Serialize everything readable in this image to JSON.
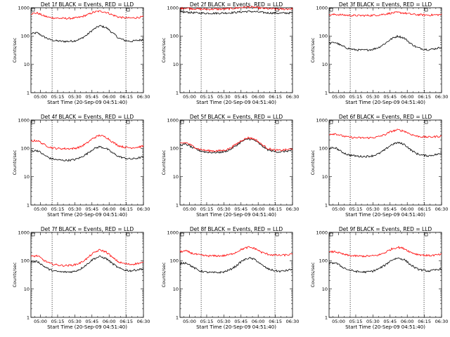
{
  "chart_data": [
    {
      "type": "line",
      "title": "Det 1f BLACK = Events, RED = LLD",
      "xlabel": "Start Time (20-Sep-09 04:51:40)",
      "ylabel": "Counts/sec",
      "yscale": "log",
      "ylim": [
        1,
        1000
      ],
      "xticks": [
        "05:00",
        "05:15",
        "05:30",
        "05:45",
        "06:00",
        "06:15",
        "06:30"
      ],
      "yticks": [
        "1",
        "10",
        "100",
        "1000"
      ],
      "series": [
        {
          "color": "#000000",
          "values": [
            120,
            130,
            95,
            75,
            68,
            65,
            65,
            68,
            80,
            110,
            170,
            230,
            200,
            130,
            85,
            70,
            65,
            70,
            75
          ]
        },
        {
          "color": "#ff0000",
          "values": [
            620,
            650,
            520,
            450,
            430,
            420,
            420,
            430,
            470,
            560,
            690,
            760,
            700,
            560,
            470,
            440,
            430,
            450,
            480
          ]
        }
      ]
    },
    {
      "type": "line",
      "title": "Det 2f BLACK = Events, RED = LLD",
      "xlabel": "Start Time (20-Sep-09 04:51:40)",
      "ylabel": "Counts/sec",
      "yscale": "log",
      "ylim": [
        1,
        1000
      ],
      "xticks": [
        "05:00",
        "05:15",
        "05:30",
        "05:45",
        "06:00",
        "06:15",
        "06:30"
      ],
      "yticks": [
        "1",
        "10",
        "100",
        "1000"
      ],
      "series": [
        {
          "color": "#000000",
          "values": [
            690,
            700,
            670,
            650,
            640,
            640,
            640,
            650,
            660,
            690,
            720,
            740,
            720,
            690,
            660,
            650,
            640,
            650,
            660
          ]
        },
        {
          "color": "#ff0000",
          "values": [
            950,
            980,
            930,
            900,
            890,
            890,
            890,
            900,
            920,
            970,
            1030,
            1060,
            1030,
            960,
            920,
            900,
            890,
            900,
            920
          ]
        }
      ]
    },
    {
      "type": "line",
      "title": "Det 3f BLACK = Events, RED = LLD",
      "xlabel": "Start Time (20-Sep-09 04:51:40)",
      "ylabel": "Counts/sec",
      "yscale": "log",
      "ylim": [
        1,
        1000
      ],
      "xticks": [
        "05:00",
        "05:15",
        "05:30",
        "05:45",
        "06:00",
        "06:15",
        "06:30"
      ],
      "yticks": [
        "1",
        "10",
        "100",
        "1000"
      ],
      "series": [
        {
          "color": "#000000",
          "values": [
            55,
            60,
            45,
            37,
            33,
            32,
            32,
            34,
            40,
            55,
            80,
            100,
            85,
            55,
            40,
            35,
            33,
            36,
            40
          ]
        },
        {
          "color": "#ff0000",
          "values": [
            550,
            580,
            560,
            540,
            530,
            530,
            530,
            540,
            560,
            600,
            650,
            680,
            650,
            600,
            570,
            560,
            550,
            560,
            570
          ]
        }
      ]
    },
    {
      "type": "line",
      "title": "Det 4f BLACK = Events, RED = LLD",
      "xlabel": "Start Time (20-Sep-09 04:51:40)",
      "ylabel": "Counts/sec",
      "yscale": "log",
      "ylim": [
        1,
        1000
      ],
      "xticks": [
        "05:00",
        "05:15",
        "05:30",
        "05:45",
        "06:00",
        "06:15",
        "06:30"
      ],
      "yticks": [
        "1",
        "10",
        "100",
        "1000"
      ],
      "series": [
        {
          "color": "#000000",
          "values": [
            80,
            85,
            60,
            45,
            40,
            38,
            38,
            40,
            48,
            65,
            95,
            115,
            100,
            70,
            52,
            45,
            42,
            45,
            50
          ]
        },
        {
          "color": "#ff0000",
          "values": [
            180,
            190,
            140,
            110,
            100,
            98,
            98,
            100,
            115,
            155,
            230,
            290,
            250,
            170,
            125,
            110,
            105,
            110,
            120
          ]
        }
      ]
    },
    {
      "type": "line",
      "title": "Det 5f BLACK = Events, RED = LLD",
      "xlabel": "Start Time (20-Sep-09 04:51:40)",
      "ylabel": "Counts/sec",
      "yscale": "log",
      "ylim": [
        1,
        1000
      ],
      "xticks": [
        "05:00",
        "05:15",
        "05:30",
        "05:45",
        "06:00",
        "06:15",
        "06:30"
      ],
      "yticks": [
        "1",
        "10",
        "100",
        "1000"
      ],
      "series": [
        {
          "color": "#000000",
          "values": [
            130,
            140,
            105,
            85,
            75,
            72,
            72,
            75,
            90,
            125,
            180,
            220,
            190,
            125,
            90,
            78,
            75,
            80,
            85
          ]
        },
        {
          "color": "#ff0000",
          "values": [
            150,
            160,
            120,
            95,
            85,
            82,
            82,
            85,
            100,
            140,
            200,
            240,
            210,
            140,
            100,
            88,
            85,
            90,
            95
          ]
        }
      ]
    },
    {
      "type": "line",
      "title": "Det 6f BLACK = Events, RED = LLD",
      "xlabel": "Start Time (20-Sep-09 04:51:40)",
      "ylabel": "Counts/sec",
      "yscale": "log",
      "ylim": [
        1,
        1000
      ],
      "xticks": [
        "05:00",
        "05:15",
        "05:30",
        "05:45",
        "06:00",
        "06:15",
        "06:30"
      ],
      "yticks": [
        "1",
        "10",
        "100",
        "1000"
      ],
      "series": [
        {
          "color": "#000000",
          "values": [
            100,
            105,
            75,
            60,
            55,
            52,
            52,
            55,
            65,
            90,
            135,
            160,
            140,
            90,
            65,
            57,
            55,
            60,
            65
          ]
        },
        {
          "color": "#ff0000",
          "values": [
            320,
            330,
            280,
            250,
            240,
            235,
            235,
            240,
            260,
            310,
            400,
            450,
            410,
            320,
            270,
            255,
            250,
            260,
            270
          ]
        }
      ]
    },
    {
      "type": "line",
      "title": "Det 7f BLACK = Events, RED = LLD",
      "xlabel": "Start Time (20-Sep-09 04:51:40)",
      "ylabel": "Counts/sec",
      "yscale": "log",
      "ylim": [
        1,
        1000
      ],
      "xticks": [
        "05:00",
        "05:15",
        "05:30",
        "05:45",
        "06:00",
        "06:15",
        "06:30"
      ],
      "yticks": [
        "1",
        "10",
        "100",
        "1000"
      ],
      "series": [
        {
          "color": "#000000",
          "values": [
            90,
            95,
            65,
            48,
            42,
            40,
            40,
            42,
            52,
            75,
            115,
            140,
            120,
            80,
            55,
            47,
            44,
            48,
            52
          ]
        },
        {
          "color": "#ff0000",
          "values": [
            140,
            150,
            105,
            80,
            72,
            68,
            68,
            72,
            85,
            120,
            185,
            240,
            205,
            130,
            90,
            78,
            74,
            80,
            85
          ]
        }
      ]
    },
    {
      "type": "line",
      "title": "Det 8f BLACK = Events, RED = LLD",
      "xlabel": "Start Time (20-Sep-09 04:51:40)",
      "ylabel": "Counts/sec",
      "yscale": "log",
      "ylim": [
        1,
        1000
      ],
      "xticks": [
        "05:00",
        "05:15",
        "05:30",
        "05:45",
        "06:00",
        "06:15",
        "06:30"
      ],
      "yticks": [
        "1",
        "10",
        "100",
        "1000"
      ],
      "series": [
        {
          "color": "#000000",
          "values": [
            80,
            85,
            60,
            45,
            40,
            38,
            38,
            40,
            48,
            65,
            100,
            125,
            110,
            72,
            52,
            45,
            42,
            45,
            50
          ]
        },
        {
          "color": "#ff0000",
          "values": [
            210,
            220,
            180,
            160,
            150,
            148,
            148,
            150,
            165,
            200,
            260,
            300,
            270,
            200,
            170,
            158,
            155,
            160,
            168
          ]
        }
      ]
    },
    {
      "type": "line",
      "title": "Det 9f BLACK = Events, RED = LLD",
      "xlabel": "Start Time (20-Sep-09 04:51:40)",
      "ylabel": "Counts/sec",
      "yscale": "log",
      "ylim": [
        1,
        1000
      ],
      "xticks": [
        "05:00",
        "05:15",
        "05:30",
        "05:45",
        "06:00",
        "06:15",
        "06:30"
      ],
      "yticks": [
        "1",
        "10",
        "100",
        "1000"
      ],
      "series": [
        {
          "color": "#000000",
          "values": [
            80,
            85,
            62,
            48,
            43,
            40,
            40,
            43,
            52,
            70,
            105,
            125,
            110,
            72,
            52,
            46,
            43,
            47,
            52
          ]
        },
        {
          "color": "#ff0000",
          "values": [
            200,
            210,
            175,
            155,
            148,
            145,
            145,
            148,
            160,
            195,
            260,
            300,
            270,
            200,
            170,
            158,
            152,
            158,
            165
          ]
        }
      ]
    }
  ]
}
